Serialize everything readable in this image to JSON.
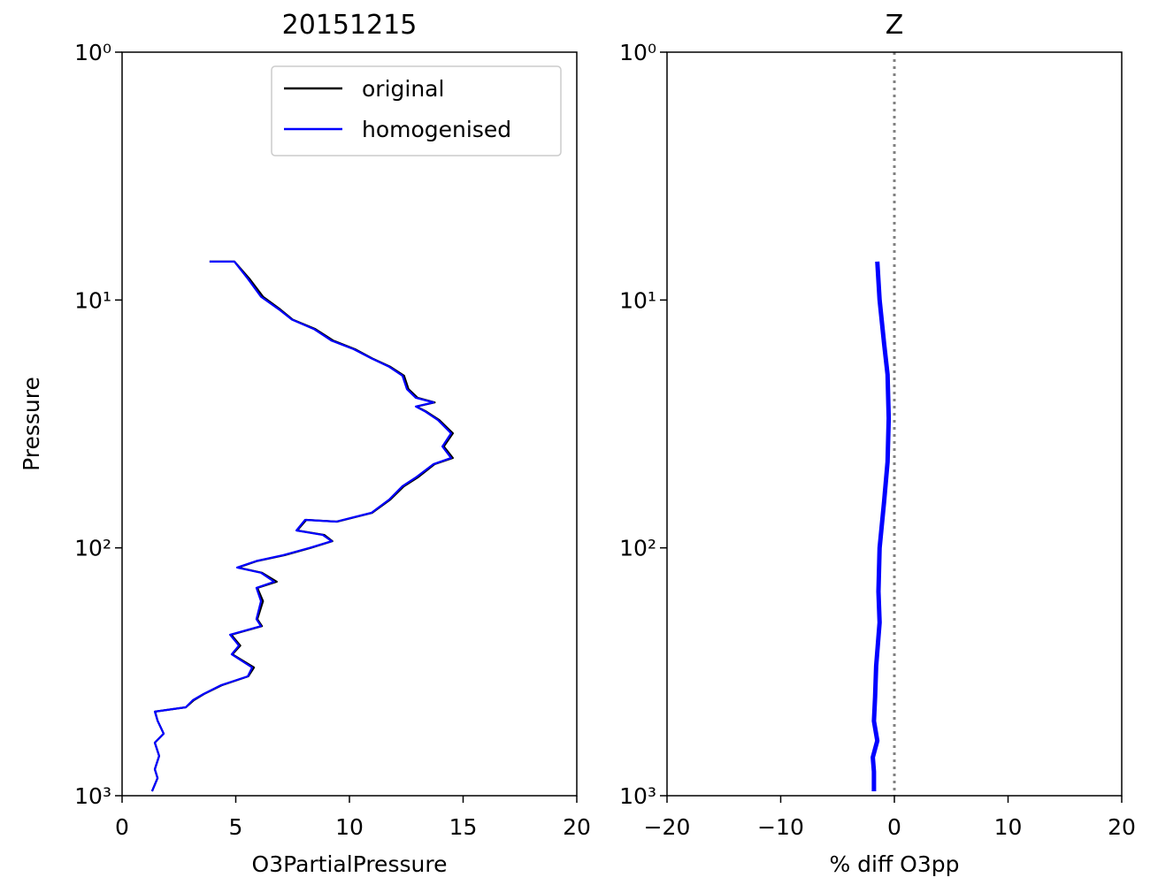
{
  "chart_data": [
    {
      "type": "line",
      "title": "20151215",
      "x_label": "O3PartialPressure",
      "y_label": "Pressure",
      "xlim": [
        0,
        20
      ],
      "xticks": [
        0,
        5,
        10,
        15,
        20
      ],
      "ylim": [
        1000,
        1
      ],
      "ylog": true,
      "yticks": [
        {
          "value": 1,
          "label": "10⁰"
        },
        {
          "value": 10,
          "label": "10¹"
        },
        {
          "value": 100,
          "label": "10²"
        },
        {
          "value": 1000,
          "label": "10³"
        }
      ],
      "legend": "upper right",
      "series": [
        {
          "name": "original",
          "color": "#000000",
          "x": [
            3.85,
            4.94,
            5.6,
            6.2,
            6.95,
            7.5,
            8.5,
            9.3,
            10.25,
            11.0,
            11.8,
            12.4,
            12.6,
            13.0,
            13.75,
            12.95,
            13.35,
            13.95,
            14.55,
            14.15,
            14.55,
            13.75,
            13.0,
            12.4,
            11.8,
            11.0,
            9.45,
            8.1,
            7.7,
            8.9,
            9.25,
            8.3,
            7.15,
            5.95,
            5.1,
            6.15,
            6.8,
            5.95,
            6.2,
            5.95,
            6.15,
            4.8,
            5.2,
            4.85,
            5.8,
            5.55,
            4.4,
            3.6,
            3.15,
            2.8,
            1.45,
            1.56,
            1.83,
            1.44,
            1.63,
            1.44,
            1.56,
            1.32
          ],
          "y": [
            7.0,
            7.0,
            8.2,
            9.7,
            10.9,
            12.0,
            13.1,
            14.6,
            15.8,
            17.2,
            18.6,
            20.2,
            22.9,
            24.8,
            25.9,
            26.9,
            28.1,
            30.5,
            34.5,
            39.0,
            43.4,
            45.9,
            52.0,
            56.4,
            63.8,
            72.2,
            78.4,
            77.1,
            85.1,
            88.7,
            94.0,
            100,
            107,
            113,
            120,
            126,
            137,
            145,
            164,
            194,
            207,
            224,
            248,
            269,
            304,
            330,
            358,
            389,
            412,
            440,
            458,
            498,
            562,
            611,
            691,
            782,
            849,
            959
          ]
        },
        {
          "name": "homogenised",
          "color": "#0000ff",
          "x": [
            3.85,
            4.94,
            5.53,
            6.11,
            6.89,
            7.47,
            8.44,
            9.22,
            10.19,
            10.97,
            11.75,
            12.33,
            12.53,
            12.92,
            13.7,
            12.92,
            13.31,
            13.89,
            14.47,
            14.09,
            14.47,
            13.7,
            12.92,
            12.33,
            11.75,
            10.97,
            9.42,
            8.05,
            7.67,
            8.83,
            9.22,
            8.25,
            7.08,
            5.91,
            5.06,
            6.11,
            6.69,
            5.91,
            6.11,
            5.91,
            6.11,
            4.75,
            5.14,
            4.82,
            5.72,
            5.53,
            4.36,
            3.58,
            3.11,
            2.8,
            1.44,
            1.56,
            1.83,
            1.44,
            1.63,
            1.44,
            1.56,
            1.32
          ],
          "y": [
            7.0,
            7.0,
            8.2,
            9.7,
            10.9,
            12.0,
            13.1,
            14.6,
            15.8,
            17.2,
            18.6,
            20.2,
            22.9,
            24.8,
            25.9,
            26.9,
            28.1,
            30.5,
            34.5,
            39.0,
            43.4,
            45.9,
            52.0,
            56.4,
            63.8,
            72.2,
            78.4,
            77.1,
            85.1,
            88.7,
            94.0,
            100,
            107,
            113,
            120,
            126,
            137,
            145,
            164,
            194,
            207,
            224,
            248,
            269,
            304,
            330,
            358,
            389,
            412,
            440,
            458,
            498,
            562,
            611,
            691,
            782,
            849,
            959
          ]
        }
      ]
    },
    {
      "type": "line",
      "title": "Z",
      "x_label": "% diff O3pp",
      "xlim": [
        -20,
        20
      ],
      "xticks": [
        {
          "value": -20,
          "label": "−20"
        },
        {
          "value": -10,
          "label": "−10"
        },
        0,
        10,
        20
      ],
      "ylim": [
        1000,
        1
      ],
      "ylog": true,
      "yticks": [
        {
          "value": 1,
          "label": "10⁰"
        },
        {
          "value": 10,
          "label": "10¹"
        },
        {
          "value": 100,
          "label": "10²"
        },
        {
          "value": 1000,
          "label": "10³"
        }
      ],
      "vline": 0,
      "series": [
        {
          "name": "homogenised",
          "color": "#0000ff",
          "x": [
            -1.5,
            -1.3,
            -0.9,
            -0.6,
            -0.5,
            -0.6,
            -0.9,
            -1.3,
            -1.4,
            -1.3,
            -1.6,
            -1.7,
            -1.8,
            -1.5,
            -1.9,
            -1.8,
            -1.8
          ],
          "y": [
            7,
            10,
            15,
            20,
            30,
            45,
            65,
            100,
            150,
            200,
            300,
            400,
            500,
            600,
            700,
            800,
            960
          ]
        }
      ]
    }
  ]
}
